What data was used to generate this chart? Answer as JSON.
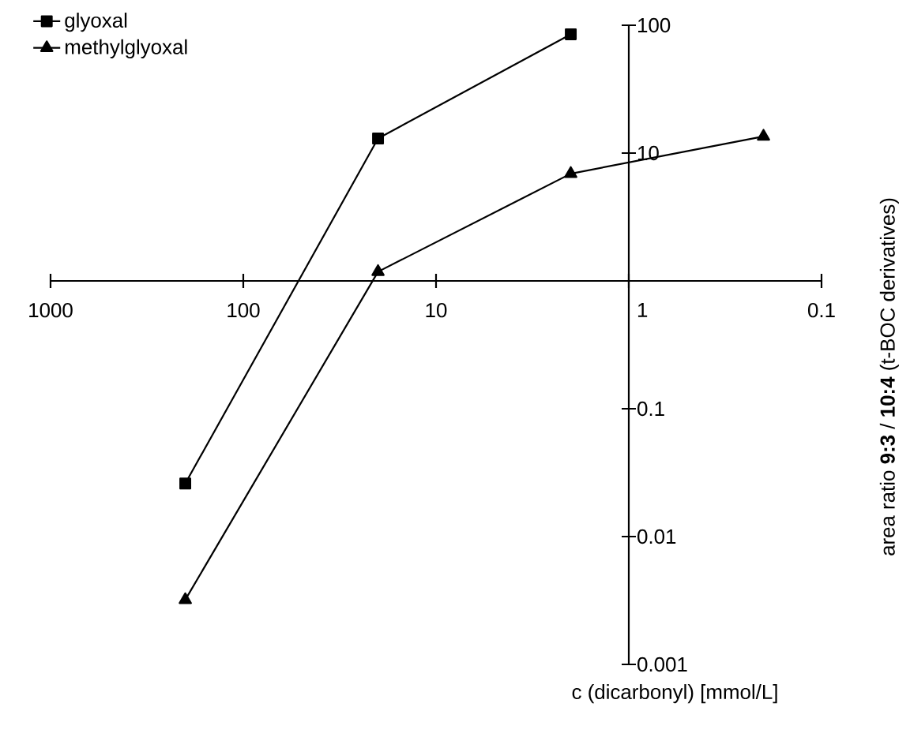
{
  "chart_data": {
    "type": "line",
    "xlabel": "c (dicarbonyl) [mmol/L]",
    "ylabel": "area ratio **9:3** / **10:4** (t-BOC derivatives)",
    "log": "xy",
    "xlim": [
      1000,
      0.1
    ],
    "ylim": [
      0.001,
      100
    ],
    "xticks": [
      1000,
      100,
      10,
      1,
      0.1
    ],
    "yticks": [
      0.001,
      0.01,
      0.1,
      10,
      100
    ],
    "legend": "top left",
    "line_style": "solid",
    "series": [
      {
        "name": "glyoxal",
        "color": "#000000",
        "marker": "square",
        "x": [
          200,
          20,
          2
        ],
        "values": [
          0.026,
          13,
          85
        ]
      },
      {
        "name": "methylglyoxal",
        "color": "#000000",
        "marker": "triangle",
        "x": [
          200,
          20,
          2,
          0.2
        ],
        "values": [
          0.0032,
          1.18,
          6.9,
          13.5
        ]
      }
    ]
  }
}
